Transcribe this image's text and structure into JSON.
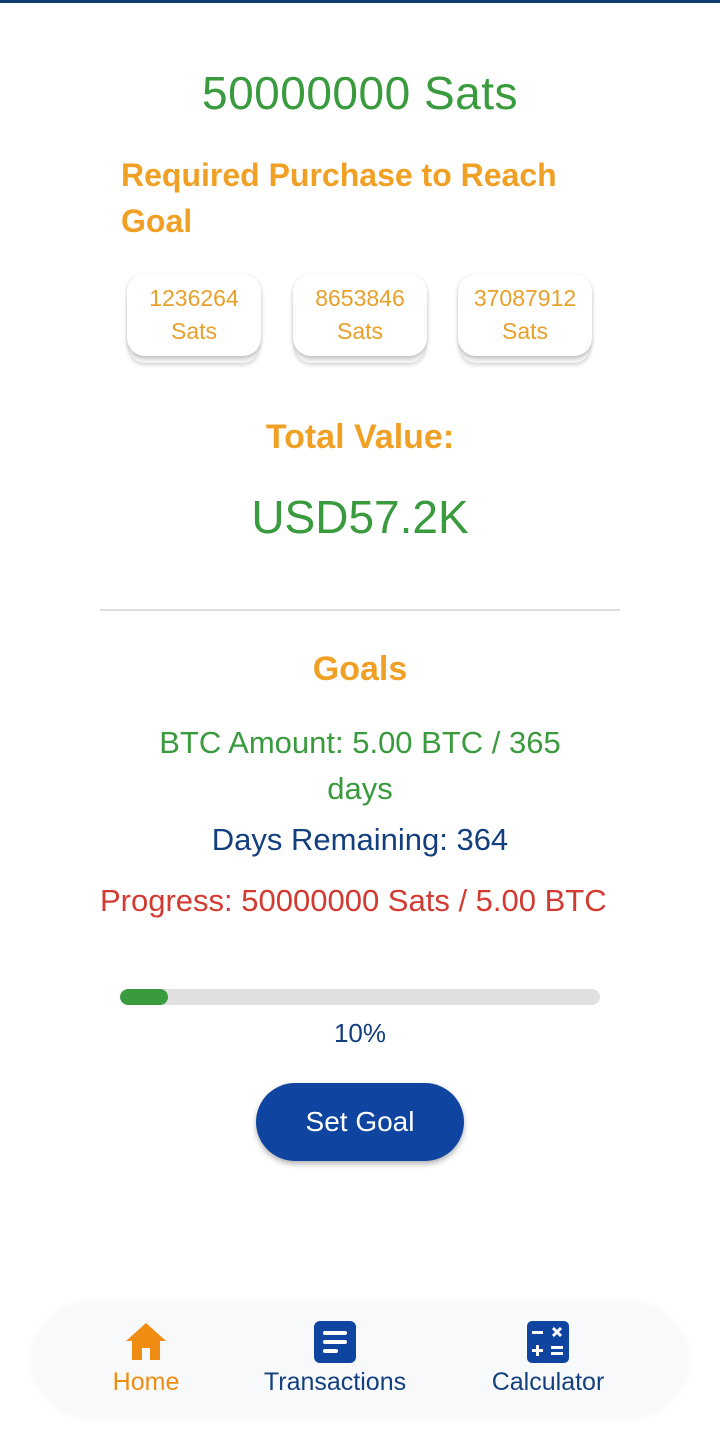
{
  "header": {
    "total_sats": "50000000 Sats"
  },
  "required": {
    "heading": "Required Purchase to Reach Goal",
    "options": [
      {
        "amount": "1236264",
        "unit": "Sats"
      },
      {
        "amount": "8653846",
        "unit": "Sats"
      },
      {
        "amount": "37087912",
        "unit": "Sats"
      }
    ]
  },
  "total": {
    "label": "Total Value:",
    "value": "USD57.2K"
  },
  "goals": {
    "heading": "Goals",
    "btc_amount": "BTC Amount: 5.00 BTC / 365 days",
    "days_remaining": "Days Remaining: 364",
    "progress": "Progress: 50000000 Sats / 5.00 BTC",
    "percent_label": "10%",
    "progress_fraction": 0.1,
    "set_goal_label": "Set Goal"
  },
  "nav": {
    "items": [
      {
        "label": "Home",
        "icon": "home-icon",
        "active": true
      },
      {
        "label": "Transactions",
        "icon": "document-icon",
        "active": false
      },
      {
        "label": "Calculator",
        "icon": "calculator-icon",
        "active": false
      }
    ]
  },
  "colors": {
    "green": "#3a9a3e",
    "orange": "#f0a024",
    "navy": "#143f7e",
    "red": "#d23a32",
    "button_blue": "#0f45a0",
    "active_nav": "#f08c12"
  }
}
